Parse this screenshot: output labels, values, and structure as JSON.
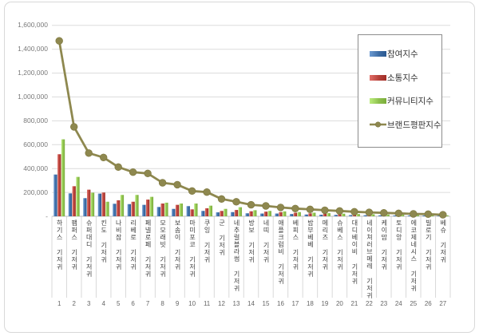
{
  "chart_data": {
    "type": "bar+line",
    "title": "",
    "xlabel": "",
    "ylabel": "",
    "grid": true,
    "legend_position": "right-top-overlay",
    "ylim": [
      0,
      1600000
    ],
    "ytick_step": 200000,
    "ytick_labels": [
      "-",
      "200,000",
      "400,000",
      "600,000",
      "800,000",
      "1,000,000",
      "1,200,000",
      "1,400,000",
      "1,600,000"
    ],
    "categories": [
      "하기스 기저귀",
      "팸퍼스 기저귀",
      "슈퍼대디 기저귀",
      "킨도 기저귀",
      "나비잠 기저귀",
      "리베로 기저귀",
      "페넬로페 기저귀",
      "모모래빗 기저귀",
      "보솜이 기저귀",
      "마미포코 기저귀",
      "쿠잉 기저귀",
      "군 기저귀",
      "네추럴블라썸 기저귀",
      "방보 기저귀",
      "네띠 기저귀",
      "애플크럼비 기저귀",
      "베피스 기저귀",
      "밤부베베 기저귀",
      "메리즈 기저귀",
      "슈베스 기저귀",
      "대디베이비 기저귀",
      "네이쳐러브메레 기저귀",
      "케이맘 기저귀",
      "토디앙 기저귀",
      "에코제네시스 기저귀",
      "빌로기 기저귀",
      "베슈 기저귀"
    ],
    "ranks": [
      "1",
      "2",
      "3",
      "4",
      "5",
      "6",
      "7",
      "8",
      "9",
      "10",
      "11",
      "12",
      "13",
      "14",
      "15",
      "16",
      "17",
      "18",
      "19",
      "20",
      "21",
      "22",
      "23",
      "24",
      "25",
      "26",
      "27"
    ],
    "series": [
      {
        "name": "참여지수",
        "type": "bar",
        "color": "#3e6da5",
        "values": [
          350000,
          192000,
          152000,
          190000,
          105000,
          102000,
          96000,
          78000,
          62000,
          85000,
          45000,
          33000,
          35000,
          25000,
          23000,
          23000,
          19000,
          15000,
          13000,
          12000,
          10000,
          9000,
          8000,
          7000,
          6000,
          5000,
          4000
        ]
      },
      {
        "name": "소통지수",
        "type": "bar",
        "color": "#b5413a",
        "values": [
          520000,
          252000,
          223000,
          199000,
          134000,
          122000,
          140000,
          107000,
          96000,
          58000,
          67000,
          45000,
          53000,
          42000,
          39000,
          35000,
          30000,
          25000,
          22000,
          18000,
          16000,
          14000,
          12000,
          11000,
          9000,
          8000,
          6000
        ]
      },
      {
        "name": "커뮤니티지수",
        "type": "bar",
        "color": "#8ec04e",
        "values": [
          645000,
          330000,
          198000,
          122000,
          179000,
          179000,
          163000,
          114000,
          107000,
          107000,
          89000,
          62000,
          76000,
          51000,
          45000,
          41000,
          35000,
          30000,
          26000,
          22000,
          19000,
          17000,
          15000,
          13000,
          11000,
          10000,
          8000
        ]
      },
      {
        "name": "브랜드평판지수",
        "type": "line",
        "color": "#8e884f",
        "values": [
          1470000,
          750000,
          530000,
          493000,
          413000,
          370000,
          359000,
          281000,
          265000,
          212000,
          203000,
          145000,
          122000,
          96000,
          87000,
          74000,
          65000,
          58000,
          51000,
          45000,
          38000,
          33000,
          29000,
          25000,
          20000,
          18000,
          13000
        ]
      }
    ]
  }
}
